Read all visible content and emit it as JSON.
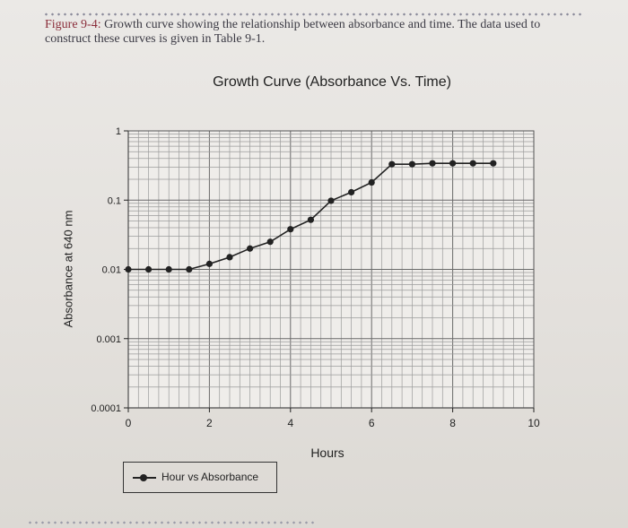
{
  "caption": {
    "label": "Figure 9-4:",
    "text": " Growth curve showing the relationship between absorbance and time. The data used to construct these curves is given in Table 9-1."
  },
  "chart_data": {
    "type": "line",
    "title": "Growth Curve (Absorbance Vs. Time)",
    "xlabel": "Hours",
    "ylabel": "Absorbance at 640 nm",
    "xlim": [
      0,
      10
    ],
    "ylim": [
      0.0001,
      1
    ],
    "y_scale": "log",
    "grid": true,
    "legend_position": "bottom-left",
    "x_ticks": [
      "0",
      "2",
      "4",
      "6",
      "8",
      "10"
    ],
    "y_ticks": [
      "0.0001",
      "0.001",
      "0.01",
      "0.1",
      "1"
    ],
    "series": [
      {
        "name": "Hour vs Absorbance",
        "x": [
          0,
          0.5,
          1,
          1.5,
          2,
          2.5,
          3,
          3.5,
          4,
          4.5,
          5,
          5.5,
          6,
          6.5,
          7,
          7.5,
          8,
          8.5,
          9
        ],
        "y": [
          0.01,
          0.01,
          0.01,
          0.01,
          0.012,
          0.015,
          0.02,
          0.025,
          0.038,
          0.052,
          0.098,
          0.13,
          0.18,
          0.33,
          0.33,
          0.34,
          0.34,
          0.34,
          0.34
        ]
      }
    ],
    "color": "#222222"
  }
}
